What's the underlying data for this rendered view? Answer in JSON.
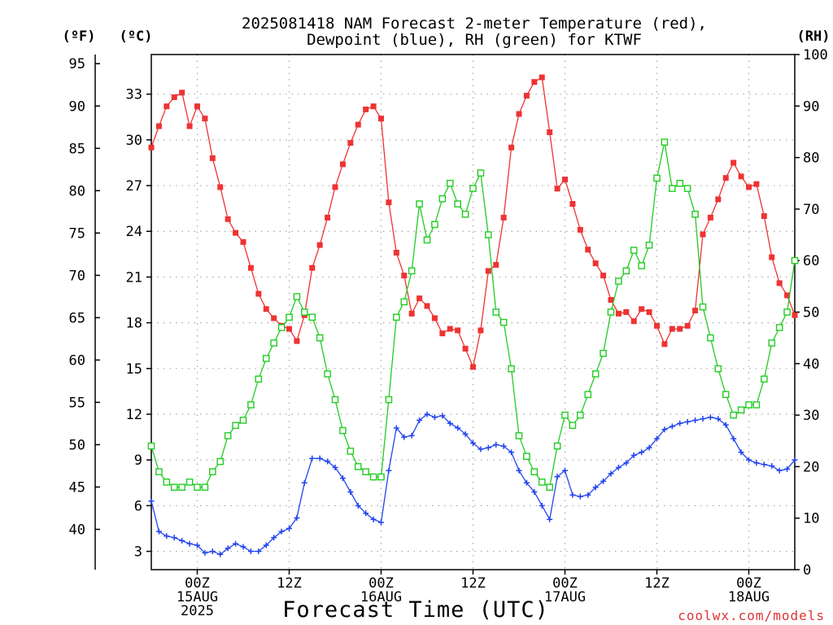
{
  "chart_data": {
    "type": "line",
    "title": "2025081418 NAM Forecast 2-meter Temperature (red),",
    "subtitle": "Dewpoint (blue), RH (green) for KTWF",
    "xlabel": "Forecast Time (UTC)",
    "credit": "coolwx.com/models",
    "units": {
      "fahrenheit": "(ºF)",
      "celsius": "(ºC)",
      "rh": "(RH)"
    },
    "x_range_hours": [
      0,
      84
    ],
    "x_ticks": [
      {
        "h": 6,
        "line1": "00Z",
        "line2": "15AUG",
        "line3": "2025"
      },
      {
        "h": 18,
        "line1": "12Z",
        "line2": "",
        "line3": ""
      },
      {
        "h": 30,
        "line1": "00Z",
        "line2": "16AUG",
        "line3": ""
      },
      {
        "h": 42,
        "line1": "12Z",
        "line2": "",
        "line3": ""
      },
      {
        "h": 54,
        "line1": "00Z",
        "line2": "17AUG",
        "line3": ""
      },
      {
        "h": 66,
        "line1": "12Z",
        "line2": "",
        "line3": ""
      },
      {
        "h": 78,
        "line1": "00Z",
        "line2": "18AUG",
        "line3": ""
      }
    ],
    "celsius_axis": {
      "range": [
        1.8,
        35.6
      ],
      "ticks": [
        3,
        6,
        9,
        12,
        15,
        18,
        21,
        24,
        27,
        30,
        33
      ]
    },
    "fahrenheit_axis": {
      "ticks": [
        40,
        45,
        50,
        55,
        60,
        65,
        70,
        75,
        80,
        85,
        90,
        95
      ]
    },
    "rh_axis": {
      "range": [
        0,
        100
      ],
      "ticks": [
        0,
        10,
        20,
        30,
        40,
        50,
        60,
        70,
        80,
        90,
        100
      ]
    },
    "grid": true,
    "series": [
      {
        "name": "Temperature",
        "color": "#ee3333",
        "marker": "filled-square",
        "axis": "celsius",
        "values": [
          29.5,
          30.9,
          32.2,
          32.8,
          33.1,
          30.9,
          32.2,
          31.4,
          28.8,
          26.9,
          24.8,
          23.9,
          23.3,
          21.6,
          19.9,
          18.9,
          18.3,
          17.8,
          17.6,
          16.8,
          18.5,
          21.6,
          23.1,
          24.9,
          26.9,
          28.4,
          29.8,
          31.0,
          32.0,
          32.2,
          31.4,
          25.9,
          22.6,
          21.1,
          18.6,
          19.6,
          19.1,
          18.3,
          17.3,
          17.6,
          17.5,
          16.3,
          15.1,
          17.5,
          21.4,
          21.8,
          24.9,
          29.5,
          31.7,
          32.9,
          33.8,
          34.1,
          30.5,
          26.8,
          27.4,
          25.8,
          24.1,
          22.8,
          21.9,
          21.1,
          19.5,
          18.6,
          18.7,
          18.1,
          18.9,
          18.7,
          17.8,
          16.6,
          17.6,
          17.6,
          17.8,
          18.8,
          23.8,
          24.9,
          26.1,
          27.5,
          28.5,
          27.6,
          26.9,
          27.1,
          25.0,
          22.3,
          20.6,
          19.8,
          18.5
        ]
      },
      {
        "name": "Dewpoint",
        "color": "#2244ee",
        "marker": "plus",
        "axis": "celsius",
        "values": [
          6.3,
          4.3,
          4.0,
          3.9,
          3.7,
          3.5,
          3.4,
          2.9,
          3.0,
          2.8,
          3.2,
          3.5,
          3.3,
          3.0,
          3.0,
          3.4,
          3.9,
          4.3,
          4.5,
          5.2,
          7.5,
          9.1,
          9.1,
          8.9,
          8.5,
          7.8,
          6.9,
          6.0,
          5.5,
          5.1,
          4.9,
          8.3,
          11.1,
          10.5,
          10.6,
          11.6,
          12.0,
          11.8,
          11.9,
          11.4,
          11.1,
          10.7,
          10.1,
          9.7,
          9.8,
          10.0,
          9.9,
          9.5,
          8.3,
          7.5,
          6.9,
          6.0,
          5.1,
          7.9,
          8.3,
          6.7,
          6.6,
          6.7,
          7.2,
          7.6,
          8.1,
          8.5,
          8.8,
          9.3,
          9.5,
          9.8,
          10.4,
          11.0,
          11.2,
          11.4,
          11.5,
          11.6,
          11.7,
          11.8,
          11.7,
          11.3,
          10.4,
          9.5,
          9.0,
          8.8,
          8.7,
          8.6,
          8.3,
          8.4,
          9.0
        ]
      },
      {
        "name": "RH",
        "color": "#22cc22",
        "marker": "open-square",
        "axis": "rh",
        "values": [
          24,
          19,
          17,
          16,
          16,
          17,
          16,
          16,
          19,
          21,
          26,
          28,
          29,
          32,
          37,
          41,
          44,
          47,
          49,
          53,
          50,
          49,
          45,
          38,
          33,
          27,
          23,
          20,
          19,
          18,
          18,
          33,
          49,
          52,
          58,
          71,
          64,
          67,
          72,
          75,
          71,
          69,
          74,
          77,
          65,
          50,
          48,
          39,
          26,
          22,
          19,
          17,
          16,
          24,
          30,
          28,
          30,
          34,
          38,
          42,
          50,
          56,
          58,
          62,
          59,
          63,
          76,
          83,
          74,
          75,
          74,
          69,
          51,
          45,
          39,
          34,
          30,
          31,
          32,
          32,
          37,
          44,
          47,
          50,
          60
        ]
      }
    ]
  }
}
